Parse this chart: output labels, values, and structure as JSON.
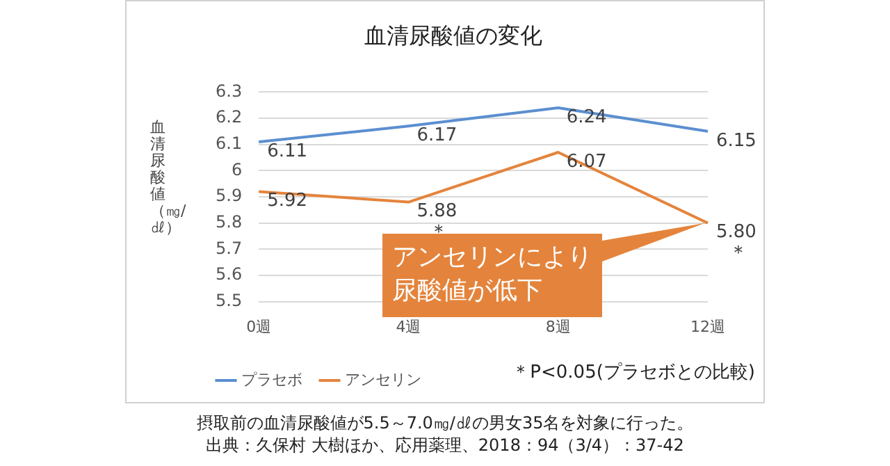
{
  "chart_data": {
    "type": "line",
    "title": "血清尿酸値の変化",
    "ylabel": "血清尿酸値（㎎/㎗）",
    "categories": [
      "0週",
      "4週",
      "8週",
      "12週"
    ],
    "series": [
      {
        "name": "プラセボ",
        "color": "#5b8fd0",
        "values": [
          6.11,
          6.17,
          6.24,
          6.15
        ],
        "value_labels": [
          "6.11",
          "6.17",
          "6.24",
          "6.15"
        ]
      },
      {
        "name": "アンセリン",
        "color": "#e4843c",
        "values": [
          5.92,
          5.88,
          6.07,
          5.8
        ],
        "value_labels": [
          "5.92",
          "5.88",
          "6.07",
          "5.80"
        ]
      }
    ],
    "ylim": [
      5.5,
      6.3
    ],
    "yticks": [
      5.5,
      5.6,
      5.7,
      5.8,
      5.9,
      {
        "value": 6,
        "label": "6"
      },
      6.1,
      6.2,
      6.3
    ],
    "grid": "y",
    "legend": "bottom",
    "marker": "none",
    "line_style": "solid",
    "annotations": [
      {
        "text": "＊",
        "x": "4週",
        "y": 5.88
      },
      {
        "text": "＊",
        "x": "12週",
        "y": 5.8
      },
      {
        "text": "アンセリンにより尿酸値が低下",
        "x": "12週",
        "y": 5.8
      },
      "＊P<0.05(プラセボとの比較)",
      "摂取前の血清尿酸値が5.5～7.0㎎/㎗の男女35名を対象に行った。",
      "出典：久保村 大樹ほか、応用薬理、2018：94（3/4）：37-42"
    ]
  }
}
